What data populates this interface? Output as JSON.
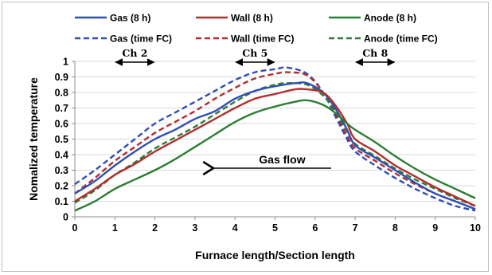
{
  "chart_data": {
    "type": "line",
    "xlabel": "Furnace length/Section length",
    "ylabel": "Nomalized temperature",
    "xlim": [
      0,
      10
    ],
    "ylim": [
      0,
      1
    ],
    "x_ticks": [
      "0",
      "1",
      "2",
      "3",
      "4",
      "5",
      "6",
      "7",
      "8",
      "9",
      "10"
    ],
    "y_ticks": [
      "0",
      "0.1",
      "0.2",
      "0.3",
      "0.4",
      "0.5",
      "0.6",
      "0.7",
      "0.8",
      "0.9",
      "1"
    ],
    "grid": true,
    "legend_position": "top",
    "colors": {
      "gas": "#2e4fb8",
      "wall": "#b0302e",
      "anode": "#2e7d32"
    },
    "series": [
      {
        "name": "Gas (8 h)",
        "key": "gas",
        "dash": "solid",
        "x": [
          0,
          0.5,
          1,
          1.5,
          2,
          2.5,
          3,
          3.5,
          4,
          4.5,
          5,
          5.5,
          5.8,
          6.2,
          6.5,
          6.8,
          7,
          7.5,
          8,
          8.5,
          9,
          9.5,
          10
        ],
        "y": [
          0.15,
          0.23,
          0.33,
          0.42,
          0.5,
          0.56,
          0.63,
          0.68,
          0.76,
          0.81,
          0.84,
          0.86,
          0.86,
          0.8,
          0.7,
          0.56,
          0.46,
          0.38,
          0.3,
          0.22,
          0.15,
          0.1,
          0.05
        ]
      },
      {
        "name": "Wall (8 h)",
        "key": "wall",
        "dash": "solid",
        "x": [
          0,
          0.5,
          1,
          1.5,
          2,
          2.5,
          3,
          3.5,
          4,
          4.5,
          5,
          5.5,
          5.8,
          6.2,
          6.5,
          6.8,
          7,
          7.5,
          8,
          8.5,
          9,
          9.5,
          10
        ],
        "y": [
          0.1,
          0.18,
          0.27,
          0.34,
          0.42,
          0.49,
          0.56,
          0.63,
          0.7,
          0.76,
          0.79,
          0.82,
          0.82,
          0.8,
          0.72,
          0.6,
          0.5,
          0.42,
          0.33,
          0.26,
          0.19,
          0.13,
          0.07
        ]
      },
      {
        "name": "Anode (8 h)",
        "key": "anode",
        "dash": "solid",
        "x": [
          0,
          0.5,
          1,
          1.5,
          2,
          2.5,
          3,
          3.5,
          4,
          4.5,
          5,
          5.5,
          5.8,
          6.2,
          6.5,
          6.8,
          7,
          7.5,
          8,
          8.5,
          9,
          9.5,
          10
        ],
        "y": [
          0.04,
          0.1,
          0.18,
          0.24,
          0.3,
          0.37,
          0.45,
          0.53,
          0.61,
          0.67,
          0.71,
          0.74,
          0.75,
          0.72,
          0.67,
          0.6,
          0.56,
          0.48,
          0.39,
          0.31,
          0.24,
          0.18,
          0.12
        ]
      },
      {
        "name": "Gas (time FC)",
        "key": "gas",
        "dash": "dashed",
        "x": [
          0,
          0.5,
          1,
          1.5,
          2,
          2.5,
          3,
          3.5,
          4,
          4.5,
          5,
          5.3,
          5.8,
          6.2,
          6.5,
          6.8,
          7,
          7.5,
          8,
          8.5,
          9,
          9.5,
          10
        ],
        "y": [
          0.21,
          0.3,
          0.4,
          0.5,
          0.6,
          0.67,
          0.74,
          0.81,
          0.88,
          0.93,
          0.95,
          0.96,
          0.92,
          0.8,
          0.65,
          0.5,
          0.42,
          0.33,
          0.25,
          0.18,
          0.12,
          0.07,
          0.04
        ]
      },
      {
        "name": "Wall (time FC)",
        "key": "wall",
        "dash": "dashed",
        "x": [
          0,
          0.5,
          1,
          1.5,
          2,
          2.5,
          3,
          3.5,
          4,
          4.5,
          5,
          5.3,
          5.8,
          6.2,
          6.5,
          6.8,
          7,
          7.5,
          8,
          8.5,
          9,
          9.5,
          10
        ],
        "y": [
          0.15,
          0.25,
          0.36,
          0.45,
          0.54,
          0.61,
          0.68,
          0.76,
          0.83,
          0.89,
          0.92,
          0.93,
          0.91,
          0.8,
          0.67,
          0.52,
          0.44,
          0.36,
          0.28,
          0.21,
          0.15,
          0.1,
          0.05
        ]
      },
      {
        "name": "Anode (time FC)",
        "key": "anode",
        "dash": "dashed",
        "x": [
          0,
          0.5,
          1,
          1.5,
          2,
          2.5,
          3,
          3.5,
          4,
          4.5,
          5,
          5.3,
          5.8,
          6.2,
          6.5,
          6.8,
          7,
          7.5,
          8,
          8.5,
          9,
          9.5,
          10
        ],
        "y": [
          0.09,
          0.17,
          0.27,
          0.35,
          0.44,
          0.51,
          0.58,
          0.66,
          0.74,
          0.81,
          0.85,
          0.86,
          0.85,
          0.78,
          0.68,
          0.55,
          0.47,
          0.39,
          0.31,
          0.24,
          0.18,
          0.12,
          0.07
        ]
      }
    ],
    "annotations": [
      {
        "text": "Ch 2",
        "x_from": 1,
        "x_to": 2,
        "kind": "double-arrow"
      },
      {
        "text": "Ch 5",
        "x_from": 4,
        "x_to": 5,
        "kind": "double-arrow"
      },
      {
        "text": "Ch 8",
        "x_from": 7,
        "x_to": 8,
        "kind": "double-arrow"
      },
      {
        "text": "Gas flow",
        "x_from": 6.4,
        "x_to": 3.4,
        "y": 0.3,
        "kind": "left-arrow"
      }
    ]
  }
}
